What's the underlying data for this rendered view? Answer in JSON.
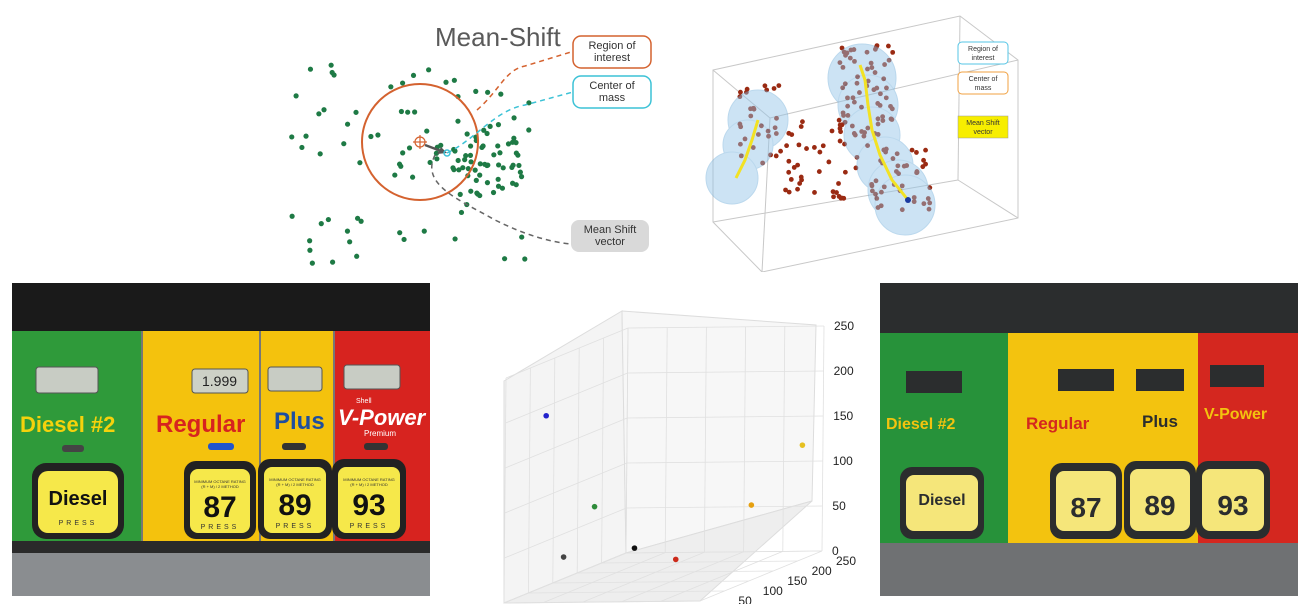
{
  "meanshift_2d": {
    "title": "Mean-Shift",
    "labels": {
      "region": "Region of interest",
      "center": "Center of mass",
      "vector": "Mean Shift vector"
    },
    "colors": {
      "points": "#1e7a45",
      "region": "#d4622f",
      "center": "#3cc2d6",
      "vector_box": "#d9d9d9"
    }
  },
  "meanshift_3d": {
    "legend": {
      "region": "Region of interest",
      "center": "Center of mass",
      "vector": "Mean Shift vector"
    },
    "colors": {
      "points": "#9a2a12",
      "spheres": "#8fc3e8",
      "path": "#f2e224",
      "region_border": "#56c6e6",
      "center_border": "#f0a040"
    }
  },
  "pump_photo": {
    "grades": [
      {
        "name": "Diesel #2",
        "button": "Diesel",
        "button_sub": "PRESS",
        "color": "#2f9a3a",
        "text_color": "#f5d20c"
      },
      {
        "name": "Regular",
        "button": "87",
        "button_sub": "PRESS",
        "color": "#f4c20d",
        "text_color": "#d7231f"
      },
      {
        "name": "Plus",
        "button": "89",
        "button_sub": "PRESS",
        "color": "#f4c20d",
        "text_color": "#1d4ea0"
      },
      {
        "name": "V-Power",
        "button": "93",
        "button_sub": "PRESS",
        "color": "#d7231f",
        "text_color": "#ffffff"
      }
    ],
    "regular_price": "1.999",
    "vpower_brand": "Shell",
    "vpower_sub": "Premium",
    "octane_note": "MINIMUM OCTANE RATING",
    "octane_method": "(R + M) / 2 METHOD"
  },
  "chart_data": {
    "type": "scatter",
    "dimensions": 3,
    "x_ticks": [
      0,
      50,
      100,
      150,
      200,
      250
    ],
    "y_ticks": [
      0,
      50,
      100,
      150,
      200,
      250
    ],
    "z_ticks": [
      0,
      50,
      100,
      150,
      200,
      250
    ],
    "xlim": [
      0,
      250
    ],
    "ylim": [
      0,
      250
    ],
    "zlim": [
      0,
      250
    ],
    "grid": true,
    "points": [
      {
        "x": 30,
        "y": 35,
        "z": 200,
        "color": "#2222cc"
      },
      {
        "x": 40,
        "y": 120,
        "z": 80,
        "color": "#2e8b3a"
      },
      {
        "x": 60,
        "y": 25,
        "z": 45,
        "color": "#444444"
      },
      {
        "x": 110,
        "y": 90,
        "z": 40,
        "color": "#111111"
      },
      {
        "x": 200,
        "y": 30,
        "z": 40,
        "color": "#cc2a1a"
      },
      {
        "x": 230,
        "y": 240,
        "z": 120,
        "color": "#e6c020"
      },
      {
        "x": 240,
        "y": 120,
        "z": 80,
        "color": "#e6a010"
      }
    ]
  },
  "segmented_photo": {
    "labels": [
      "Diesel #2",
      "Regular",
      "Plus",
      "V-Power"
    ],
    "buttons": [
      "Diesel",
      "87",
      "89",
      "93"
    ],
    "colors": {
      "green": "#27923a",
      "yellow": "#f3c30f",
      "red": "#d4271f",
      "dark": "#2b2d2e",
      "cream": "#f5e67a"
    }
  }
}
